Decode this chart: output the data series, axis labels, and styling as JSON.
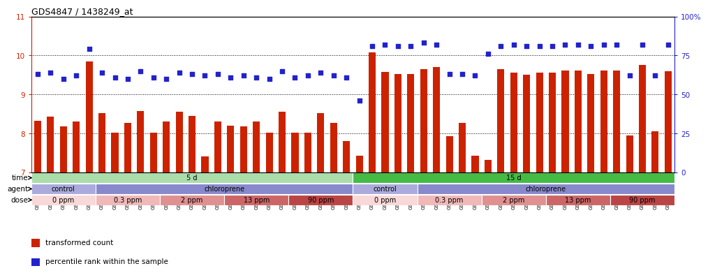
{
  "title": "GDS4847 / 1438249_at",
  "samples": [
    "GSM1001784",
    "GSM1001785",
    "GSM1001786",
    "GSM1001787",
    "GSM1001788",
    "GSM1001775",
    "GSM1001776",
    "GSM1001777",
    "GSM1001778",
    "GSM1001874",
    "GSM1001804",
    "GSM1001805",
    "GSM1001806",
    "GSM1001807",
    "GSM1001808",
    "GSM1001794",
    "GSM1001795",
    "GSM1001796",
    "GSM1001797",
    "GSM1001798",
    "GSM1001814",
    "GSM1001815",
    "GSM1001816",
    "GSM1001817",
    "GSM1001818",
    "GSM1001779",
    "GSM1001780",
    "GSM1001781",
    "GSM1001782",
    "GSM1001783",
    "GSM1001869",
    "GSM1001870",
    "GSM1001871",
    "GSM1001872",
    "GSM1001873",
    "GSM1001799",
    "GSM1001800",
    "GSM1001801",
    "GSM1001802",
    "GSM1001803",
    "GSM1001789",
    "GSM1001790",
    "GSM1001791",
    "GSM1001792",
    "GSM1001793",
    "GSM1001809",
    "GSM1001810",
    "GSM1001811",
    "GSM1001812",
    "GSM1001813"
  ],
  "bar_values": [
    8.32,
    8.42,
    8.18,
    8.3,
    9.85,
    8.52,
    8.02,
    8.27,
    8.58,
    8.02,
    8.3,
    8.55,
    8.44,
    7.4,
    8.3,
    8.2,
    8.18,
    8.3,
    8.02,
    8.55,
    8.02,
    8.02,
    8.52,
    8.27,
    7.8,
    7.42,
    10.08,
    9.58,
    9.52,
    9.52,
    9.65,
    9.7,
    7.92,
    8.27,
    7.42,
    7.32,
    9.65,
    9.55,
    9.5,
    9.55,
    9.55,
    9.62,
    9.62,
    9.52,
    9.62,
    9.62,
    7.95,
    9.75,
    8.05,
    9.6
  ],
  "percentile_values": [
    63,
    64,
    60,
    62,
    79,
    64,
    61,
    60,
    65,
    61,
    60,
    64,
    63,
    62,
    63,
    61,
    62,
    61,
    60,
    65,
    61,
    62,
    64,
    62,
    61,
    46,
    81,
    82,
    81,
    81,
    83,
    82,
    63,
    63,
    62,
    76,
    81,
    82,
    81,
    81,
    81,
    82,
    82,
    81,
    82,
    82,
    62,
    82,
    62,
    82
  ],
  "ylim_left": [
    7,
    11
  ],
  "ylim_right": [
    0,
    100
  ],
  "yticks_left": [
    7,
    8,
    9,
    10,
    11
  ],
  "yticks_right": [
    0,
    25,
    50,
    75,
    100
  ],
  "ytick_labels_right": [
    "0",
    "25",
    "50",
    "75",
    "100%"
  ],
  "bar_color": "#cc2200",
  "dot_color": "#2222cc",
  "background_color": "#ffffff",
  "grid_color": "#000000",
  "time_row": {
    "label": "time",
    "segments": [
      {
        "text": "5 d",
        "start": 0,
        "end": 25,
        "color": "#aaddaa"
      },
      {
        "text": "15 d",
        "start": 25,
        "end": 50,
        "color": "#44bb44"
      }
    ]
  },
  "agent_row": {
    "label": "agent",
    "segments": [
      {
        "text": "control",
        "start": 0,
        "end": 5,
        "color": "#aaaadd"
      },
      {
        "text": "chloroprene",
        "start": 5,
        "end": 25,
        "color": "#8888cc"
      },
      {
        "text": "control",
        "start": 25,
        "end": 30,
        "color": "#aaaadd"
      },
      {
        "text": "chloroprene",
        "start": 30,
        "end": 50,
        "color": "#8888cc"
      }
    ]
  },
  "dose_row": {
    "label": "dose",
    "segments": [
      {
        "text": "0 ppm",
        "start": 0,
        "end": 5,
        "color": "#f8d8d8"
      },
      {
        "text": "0.3 ppm",
        "start": 5,
        "end": 10,
        "color": "#f0b8b8"
      },
      {
        "text": "2 ppm",
        "start": 10,
        "end": 15,
        "color": "#e09090"
      },
      {
        "text": "13 ppm",
        "start": 15,
        "end": 20,
        "color": "#cc6666"
      },
      {
        "text": "90 ppm",
        "start": 20,
        "end": 25,
        "color": "#bb4444"
      },
      {
        "text": "0 ppm",
        "start": 25,
        "end": 30,
        "color": "#f8d8d8"
      },
      {
        "text": "0.3 ppm",
        "start": 30,
        "end": 35,
        "color": "#f0b8b8"
      },
      {
        "text": "2 ppm",
        "start": 35,
        "end": 40,
        "color": "#e09090"
      },
      {
        "text": "13 ppm",
        "start": 40,
        "end": 45,
        "color": "#cc6666"
      },
      {
        "text": "90 ppm",
        "start": 45,
        "end": 50,
        "color": "#bb4444"
      }
    ]
  },
  "legend_items": [
    {
      "label": "transformed count",
      "color": "#cc2200"
    },
    {
      "label": "percentile rank within the sample",
      "color": "#2222cc"
    }
  ]
}
